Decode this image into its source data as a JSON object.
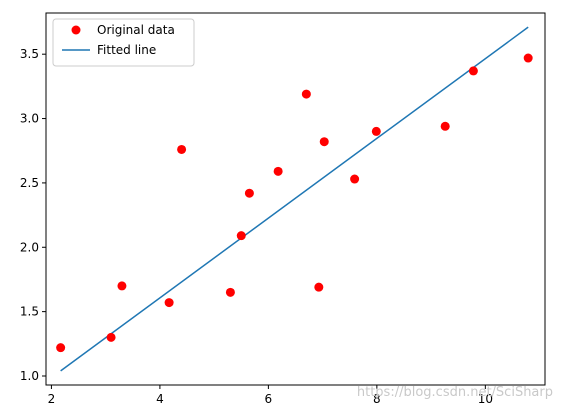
{
  "chart_data": {
    "type": "scatter",
    "title": "",
    "xlabel": "",
    "ylabel": "",
    "xlim": [
      1.9,
      11.1
    ],
    "ylim": [
      0.93,
      3.82
    ],
    "xticks": [
      2,
      4,
      6,
      8,
      10
    ],
    "yticks": [
      1.0,
      1.5,
      2.0,
      2.5,
      3.0,
      3.5
    ],
    "xtick_labels": [
      "2",
      "4",
      "6",
      "8",
      "10"
    ],
    "ytick_labels": [
      "1.0",
      "1.5",
      "2.0",
      "2.5",
      "3.0",
      "3.5"
    ],
    "grid": false,
    "legend_position": "upper-left",
    "series": [
      {
        "name": "Original data",
        "kind": "scatter",
        "color": "#ff0000",
        "points": [
          {
            "x": 2.17,
            "y": 1.22
          },
          {
            "x": 3.1,
            "y": 1.3
          },
          {
            "x": 3.3,
            "y": 1.7
          },
          {
            "x": 4.17,
            "y": 1.57
          },
          {
            "x": 4.4,
            "y": 2.76
          },
          {
            "x": 5.3,
            "y": 1.65
          },
          {
            "x": 5.5,
            "y": 2.09
          },
          {
            "x": 5.65,
            "y": 2.42
          },
          {
            "x": 6.18,
            "y": 2.59
          },
          {
            "x": 6.7,
            "y": 3.19
          },
          {
            "x": 6.93,
            "y": 1.69
          },
          {
            "x": 7.03,
            "y": 2.82
          },
          {
            "x": 7.59,
            "y": 2.53
          },
          {
            "x": 7.99,
            "y": 2.9
          },
          {
            "x": 9.26,
            "y": 2.94
          },
          {
            "x": 9.78,
            "y": 3.37
          },
          {
            "x": 10.79,
            "y": 3.47
          }
        ]
      },
      {
        "name": "Fitted line",
        "kind": "line",
        "color": "#1f77b4",
        "x": [
          2.17,
          10.79
        ],
        "y": [
          1.04,
          3.71
        ]
      }
    ]
  },
  "watermark": "https://blog.csdn.net/SciSharp"
}
